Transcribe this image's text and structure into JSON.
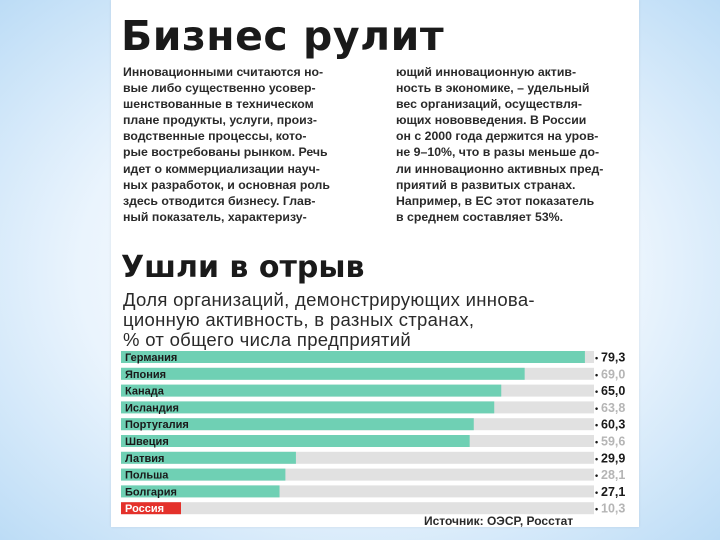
{
  "article": {
    "title": "Бизнес рулит",
    "left_column": [
      "Инновационными считаются но-",
      "вые либо существенно усовер-",
      "шенствованные в техническом",
      "плане продукты, услуги, произ-",
      "водственные процессы, кото-",
      "рые востребованы рынком. Речь",
      "идет о коммерциализации науч-",
      "ных разработок, и основная роль",
      "здесь отводится бизнесу. Глав-",
      "ный показатель, характеризу-"
    ],
    "right_column": [
      "ющий инновационную актив-",
      "ность в экономике, – удельный",
      "вес организаций, осуществля-",
      "ющих нововведения. В России",
      "он с 2000 года держится на уров-",
      "не 9–10%, что в разы меньше до-",
      "ли инновационно активных пред-",
      "приятий в развитых странах.",
      "Например, в ЕС этот показатель",
      "в среднем составляет 53%."
    ]
  },
  "chart_data": {
    "type": "bar",
    "orientation": "horizontal",
    "title": "Ушли в отрыв",
    "subtitle_lines": [
      "Доля организаций, демонстрирующих иннова-",
      "ционную активность, в разных странах,",
      "% от общего числа предприятий"
    ],
    "categories": [
      "Германия",
      "Япония",
      "Канада",
      "Исландия",
      "Португалия",
      "Швеция",
      "Латвия",
      "Польша",
      "Болгария",
      "Россия"
    ],
    "values": [
      79.3,
      69.0,
      65.0,
      63.8,
      60.3,
      59.6,
      29.9,
      28.1,
      27.1,
      10.3
    ],
    "value_labels": [
      "79,3",
      "69,0",
      "65,0",
      "63,8",
      "60,3",
      "59,6",
      "29,9",
      "28,1",
      "27,1",
      "10,3"
    ],
    "value_label_style": [
      "dark",
      "light",
      "dark",
      "light",
      "dark",
      "light",
      "dark",
      "light",
      "dark",
      "light"
    ],
    "highlight_category": "Россия",
    "xlim": [
      0,
      100
    ],
    "source": "Источник: ОЭСР, Росстат",
    "colors": {
      "bar": "#6fd0b4",
      "highlight_bar": "#e4312b",
      "track": "#e1e1e1",
      "label_dark": "#1a1a1a",
      "label_light": "#b5b5b5"
    }
  }
}
